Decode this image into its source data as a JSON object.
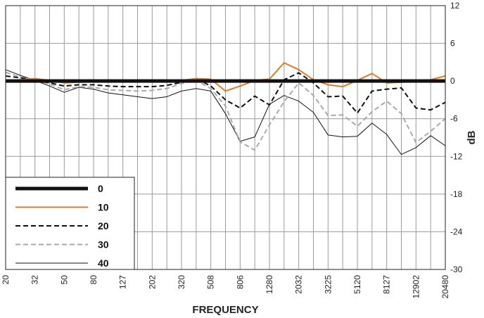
{
  "chart_data": {
    "type": "line",
    "xlabel": "FREQUENCY",
    "ylabel": "dB",
    "ylim": [
      -30,
      12
    ],
    "yticks": [
      12,
      6,
      0,
      -6,
      -12,
      -18,
      -24,
      -30
    ],
    "grid": true,
    "legend_position": "bottom-left",
    "categories": [
      "20",
      "",
      "32",
      "",
      "50",
      "",
      "80",
      "",
      "127",
      "",
      "202",
      "",
      "320",
      "",
      "508",
      "",
      "806",
      "",
      "1280",
      "",
      "2032",
      "",
      "3225",
      "",
      "5120",
      "",
      "8127",
      "",
      "12902",
      "",
      "20480"
    ],
    "xtick_labels": [
      "20",
      "32",
      "50",
      "80",
      "127",
      "202",
      "320",
      "508",
      "806",
      "1280",
      "2032",
      "3225",
      "5120",
      "8127",
      "12902",
      "20480"
    ],
    "series": [
      {
        "name": "0",
        "color": "#111111",
        "dash": "solid",
        "width": 5,
        "values": [
          0,
          0,
          0,
          0,
          0,
          0,
          0,
          0,
          0,
          0,
          0,
          0,
          0,
          0,
          0,
          0,
          0,
          0,
          0,
          0,
          0,
          0,
          0,
          0,
          0,
          0,
          0,
          0,
          0,
          0,
          0
        ]
      },
      {
        "name": "10",
        "color": "#e07b2a",
        "dash": "solid",
        "width": 2,
        "values": [
          -0.2,
          0.2,
          0.4,
          0.1,
          -0.3,
          -0.2,
          -0.1,
          -0.1,
          0,
          0,
          -0.1,
          0,
          0.1,
          0.4,
          0.3,
          -1.6,
          -0.8,
          0.1,
          0.3,
          2.9,
          1.8,
          0.2,
          -0.6,
          -0.9,
          0.1,
          1.2,
          -0.3,
          -0.2,
          0,
          0.2,
          0.8
        ]
      },
      {
        "name": "20",
        "color": "#111111",
        "dash": "dashed",
        "width": 2,
        "values": [
          0.8,
          0.5,
          0.2,
          -0.3,
          -0.8,
          -0.6,
          -0.6,
          -0.8,
          -0.9,
          -0.9,
          -0.9,
          -0.7,
          -0.2,
          0.4,
          -0.8,
          -3.0,
          -4.3,
          -2.4,
          -3.8,
          0.2,
          1.3,
          -0.3,
          -2.5,
          -2.4,
          -5.1,
          -1.6,
          -1.3,
          -1.1,
          -4.3,
          -4.6,
          -3.4
        ]
      },
      {
        "name": "30",
        "color": "#aaaaaa",
        "dash": "dashed",
        "width": 2,
        "values": [
          1.4,
          0.6,
          0.2,
          -0.5,
          -1.4,
          -0.9,
          -1.0,
          -1.4,
          -1.5,
          -1.6,
          -1.5,
          -1.2,
          -0.4,
          0.1,
          -1.2,
          -4.0,
          -9.7,
          -11.0,
          -7.0,
          -3.3,
          -0.3,
          -2.3,
          -5.5,
          -5.4,
          -7.2,
          -4.9,
          -3.2,
          -5.2,
          -9.8,
          -8.0,
          -6.0
        ]
      },
      {
        "name": "40",
        "color": "#111111",
        "dash": "solid",
        "width": 1,
        "values": [
          1.8,
          0.9,
          0.1,
          -0.8,
          -1.8,
          -1.0,
          -1.3,
          -1.9,
          -2.2,
          -2.5,
          -2.8,
          -2.5,
          -1.6,
          -1.2,
          -1.6,
          -5.2,
          -9.6,
          -8.9,
          -3.7,
          -2.3,
          -3.2,
          -5.0,
          -8.6,
          -8.9,
          -8.8,
          -6.7,
          -8.5,
          -11.7,
          -10.6,
          -8.7,
          -10.3
        ]
      }
    ]
  }
}
